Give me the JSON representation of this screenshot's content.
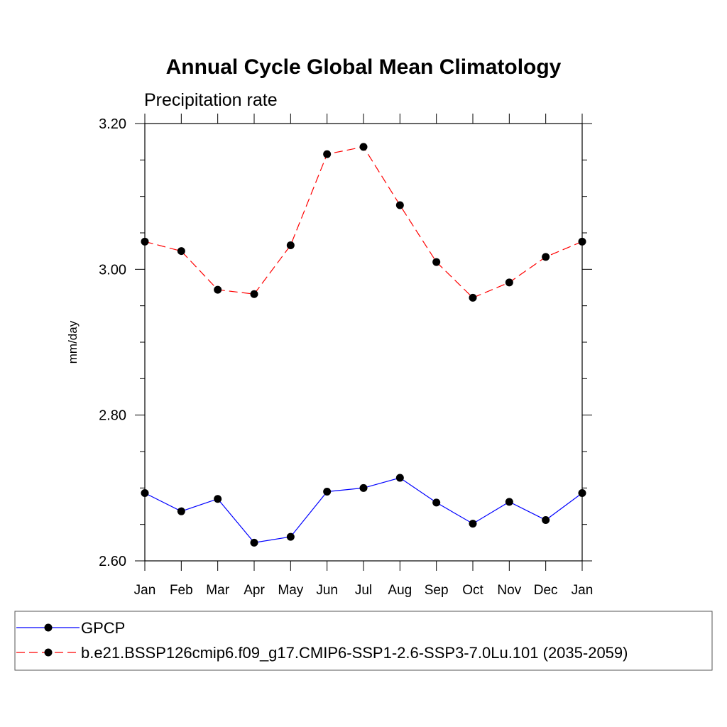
{
  "chart_data": {
    "type": "line",
    "title": "Annual Cycle Global Mean Climatology",
    "subtitle": "Precipitation rate",
    "xlabel": "",
    "ylabel": "mm/day",
    "categories": [
      "Jan",
      "Feb",
      "Mar",
      "Apr",
      "May",
      "Jun",
      "Jul",
      "Aug",
      "Sep",
      "Oct",
      "Nov",
      "Dec",
      "Jan"
    ],
    "ylim": [
      2.6,
      3.2
    ],
    "yticks": [
      "2.60",
      "2.80",
      "3.00",
      "3.20"
    ],
    "grid": false,
    "legend_position": "bottom",
    "series": [
      {
        "name": "GPCP",
        "color": "#0000ff",
        "line_style": "solid",
        "marker": "filled-circle",
        "values": [
          2.693,
          2.668,
          2.685,
          2.625,
          2.633,
          2.695,
          2.7,
          2.714,
          2.68,
          2.651,
          2.681,
          2.656,
          2.693
        ]
      },
      {
        "name": "b.e21.BSSP126cmip6.f09_g17.CMIP6-SSP1-2.6-SSP3-7.0Lu.101 (2035-2059)",
        "color": "#ff0000",
        "line_style": "dashed",
        "marker": "filled-circle",
        "values": [
          3.038,
          3.025,
          2.972,
          2.966,
          3.033,
          3.158,
          3.168,
          3.088,
          3.01,
          2.961,
          2.982,
          3.017,
          3.038
        ]
      }
    ]
  }
}
